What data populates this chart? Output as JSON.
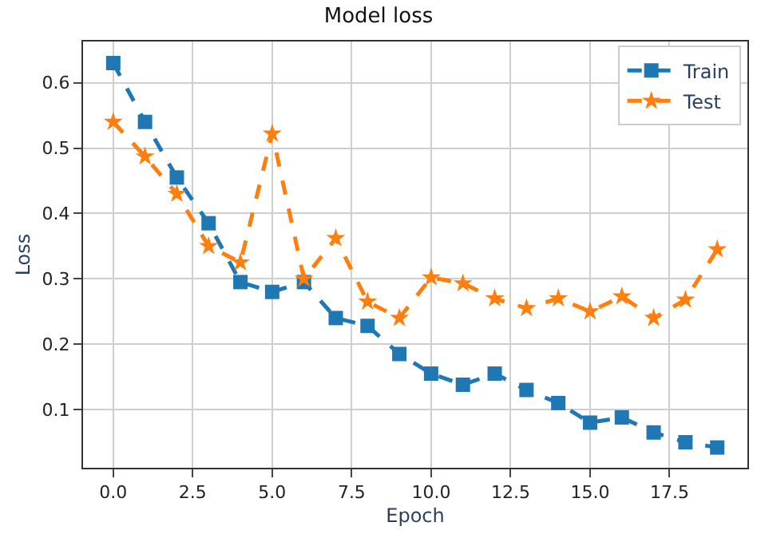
{
  "chart_data": {
    "type": "line",
    "title": "Model loss",
    "xlabel": "Epoch",
    "ylabel": "Loss",
    "x": [
      0,
      1,
      2,
      3,
      4,
      5,
      6,
      7,
      8,
      9,
      10,
      11,
      12,
      13,
      14,
      15,
      16,
      17,
      18,
      19
    ],
    "series": [
      {
        "name": "Train",
        "color": "#1f77b4",
        "marker": "square",
        "values": [
          0.63,
          0.54,
          0.455,
          0.385,
          0.295,
          0.28,
          0.295,
          0.24,
          0.228,
          0.185,
          0.155,
          0.138,
          0.155,
          0.13,
          0.11,
          0.08,
          0.088,
          0.065,
          0.05,
          0.042
        ]
      },
      {
        "name": "Test",
        "color": "#ff7f0e",
        "marker": "star",
        "values": [
          0.54,
          0.487,
          0.43,
          0.35,
          0.325,
          0.522,
          0.3,
          0.362,
          0.265,
          0.24,
          0.302,
          0.293,
          0.27,
          0.255,
          0.27,
          0.25,
          0.273,
          0.24,
          0.268,
          0.345
        ]
      }
    ],
    "xlim": [
      -0.95,
      19.95
    ],
    "xticks": [
      {
        "value": 0,
        "label": "0.0"
      },
      {
        "value": 2.5,
        "label": "2.5"
      },
      {
        "value": 5,
        "label": "5.0"
      },
      {
        "value": 7.5,
        "label": "7.5"
      },
      {
        "value": 10,
        "label": "10.0"
      },
      {
        "value": 12.5,
        "label": "12.5"
      },
      {
        "value": 15,
        "label": "15.0"
      },
      {
        "value": 17.5,
        "label": "17.5"
      }
    ],
    "ylim": [
      0.011,
      0.663
    ],
    "yticks": [
      0.1,
      0.2,
      0.3,
      0.4,
      0.5,
      0.6
    ],
    "grid": true,
    "legend": "top right",
    "line_style": "dashed"
  }
}
